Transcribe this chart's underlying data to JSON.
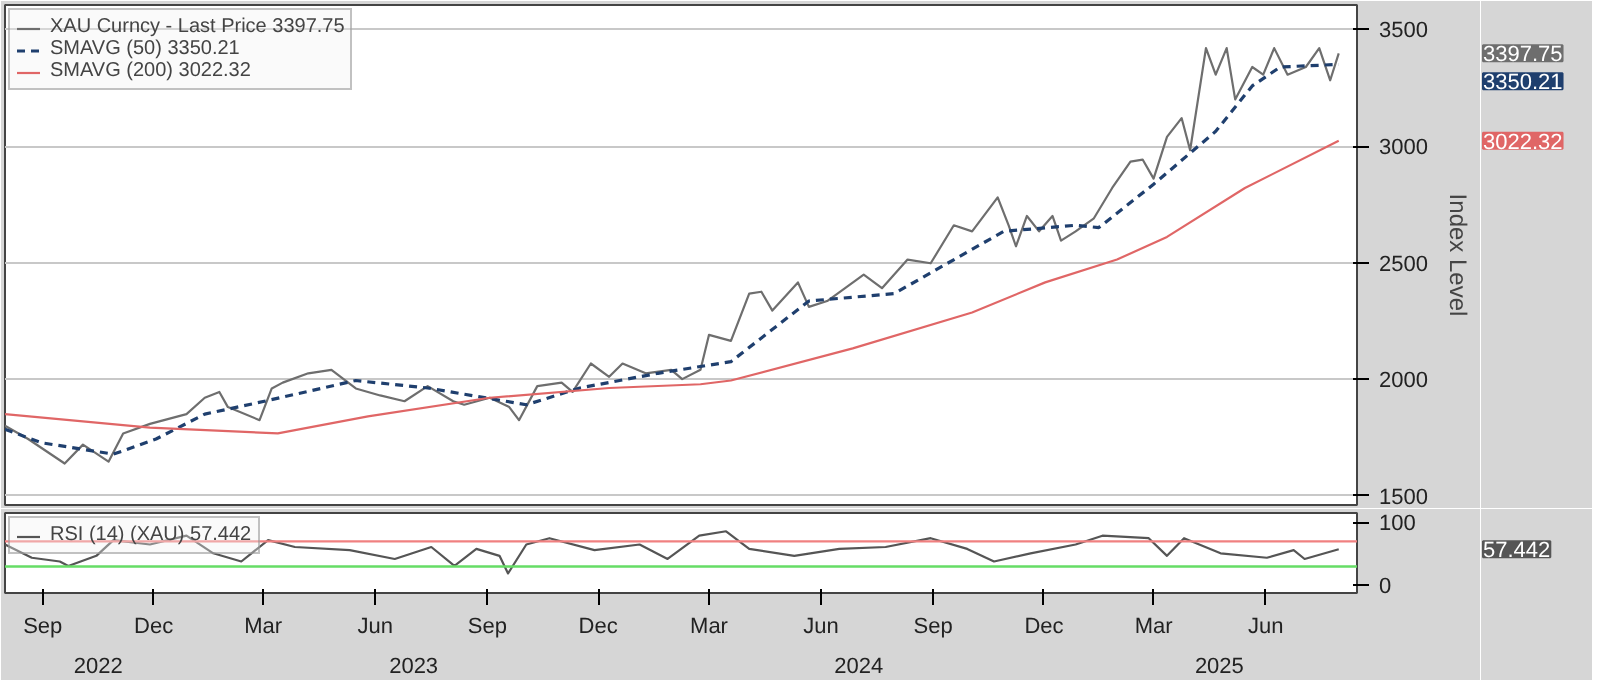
{
  "chart_data": [
    {
      "type": "line",
      "ylabel": "Index Level",
      "xlim": [
        "2022-08-01",
        "2025-08-15"
      ],
      "ylim": [
        1460,
        3605
      ],
      "yticks": [
        1500,
        2000,
        2500,
        3000,
        3500
      ],
      "tick_labels": "y",
      "grid": "y",
      "legend": "top left",
      "series": [
        {
          "name": "XAU Curncy - Last Price 3397.75",
          "color": "#6e6e6e",
          "line_style": "solid",
          "x": [
            "2022-08-01",
            "2022-08-20",
            "2022-09-19",
            "2022-10-04",
            "2022-10-25",
            "2022-11-06",
            "2022-11-28",
            "2022-12-28",
            "2023-01-12",
            "2023-01-24",
            "2023-01-31",
            "2023-02-26",
            "2023-03-08",
            "2023-03-17",
            "2023-04-07",
            "2023-04-26",
            "2023-05-16",
            "2023-06-05",
            "2023-06-25",
            "2023-07-14",
            "2023-08-04",
            "2023-08-13",
            "2023-09-03",
            "2023-09-19",
            "2023-09-27",
            "2023-10-12",
            "2023-11-01",
            "2023-11-10",
            "2023-11-25",
            "2023-12-10",
            "2023-12-21",
            "2024-01-09",
            "2024-01-30",
            "2024-02-08",
            "2024-02-23",
            "2024-03-01",
            "2024-03-19",
            "2024-04-03",
            "2024-04-13",
            "2024-04-22",
            "2024-05-13",
            "2024-05-22",
            "2024-06-06",
            "2024-07-06",
            "2024-07-21",
            "2024-08-11",
            "2024-08-30",
            "2024-09-18",
            "2024-10-03",
            "2024-10-24",
            "2024-11-02",
            "2024-11-08",
            "2024-11-17",
            "2024-11-27",
            "2024-12-08",
            "2024-12-15",
            "2024-12-27",
            "2025-01-11",
            "2025-01-26",
            "2025-02-10",
            "2025-02-20",
            "2025-03-01",
            "2025-03-12",
            "2025-03-24",
            "2025-03-31",
            "2025-04-13",
            "2025-04-21",
            "2025-04-30",
            "2025-05-07",
            "2025-05-21",
            "2025-05-30",
            "2025-06-08",
            "2025-06-19",
            "2025-07-04",
            "2025-07-15",
            "2025-07-24",
            "2025-07-31"
          ],
          "values": [
            1800,
            1743,
            1638,
            1719,
            1646,
            1767,
            1808,
            1850,
            1920,
            1945,
            1880,
            1824,
            1960,
            1985,
            2025,
            2040,
            1960,
            1930,
            1905,
            1970,
            1905,
            1890,
            1920,
            1880,
            1824,
            1970,
            1985,
            1945,
            2067,
            2010,
            2067,
            2025,
            2040,
            2000,
            2040,
            2190,
            2164,
            2367,
            2375,
            2294,
            2415,
            2310,
            2335,
            2448,
            2390,
            2513,
            2497,
            2660,
            2634,
            2780,
            2660,
            2570,
            2700,
            2634,
            2700,
            2594,
            2634,
            2690,
            2820,
            2933,
            2942,
            2860,
            3039,
            3120,
            2982,
            3420,
            3306,
            3420,
            3200,
            3339,
            3306,
            3420,
            3306,
            3339,
            3420,
            3282,
            3397.75
          ]
        },
        {
          "name": "SMAVG (50) 3350.21",
          "color": "#1f3f6e",
          "line_style": "dashed",
          "x": [
            "2022-08-01",
            "2022-08-31",
            "2022-10-29",
            "2022-12-03",
            "2023-01-12",
            "2023-03-02",
            "2023-05-16",
            "2023-07-14",
            "2023-10-03",
            "2023-11-16",
            "2024-01-19",
            "2024-03-19",
            "2024-05-22",
            "2024-07-31",
            "2024-10-29",
            "2024-12-27",
            "2025-01-15",
            "2025-03-01",
            "2025-04-21",
            "2025-05-21",
            "2025-06-13",
            "2025-07-31"
          ],
          "values": [
            1785,
            1727,
            1678,
            1743,
            1850,
            1905,
            1994,
            1962,
            1890,
            1962,
            2025,
            2075,
            2335,
            2367,
            2634,
            2660,
            2650,
            2836,
            3063,
            3258,
            3339,
            3350.21
          ]
        },
        {
          "name": "SMAVG (200) 3022.32",
          "color": "#e06666",
          "line_style": "solid",
          "x": [
            "2022-08-01",
            "2022-11-28",
            "2023-03-13",
            "2023-05-26",
            "2023-09-03",
            "2023-12-10",
            "2024-02-23",
            "2024-03-19",
            "2024-06-27",
            "2024-10-03",
            "2024-12-02",
            "2025-01-30",
            "2025-03-12",
            "2025-05-15",
            "2025-07-31"
          ],
          "values": [
            1850,
            1792,
            1767,
            1840,
            1920,
            1962,
            1978,
            1994,
            2132,
            2286,
            2415,
            2513,
            2610,
            2820,
            3022.32
          ]
        }
      ],
      "annotations": [
        "3397.75",
        "3350.21",
        "3022.32"
      ]
    },
    {
      "type": "line",
      "xlim": [
        "2022-08-01",
        "2025-08-15"
      ],
      "ylim": [
        -12,
        115
      ],
      "yticks": [
        0,
        100
      ],
      "xticks": [
        {
          "value": "2022-09-01",
          "label": "Sep"
        },
        {
          "value": "2022-12-01",
          "label": "Dec"
        },
        {
          "value": "2023-03-01",
          "label": "Mar"
        },
        {
          "value": "2023-06-01",
          "label": "Jun"
        },
        {
          "value": "2023-09-01",
          "label": "Sep"
        },
        {
          "value": "2023-12-01",
          "label": "Dec"
        },
        {
          "value": "2024-03-01",
          "label": "Mar"
        },
        {
          "value": "2024-06-01",
          "label": "Jun"
        },
        {
          "value": "2024-09-01",
          "label": "Sep"
        },
        {
          "value": "2024-12-01",
          "label": "Dec"
        },
        {
          "value": "2025-03-01",
          "label": "Mar"
        },
        {
          "value": "2025-06-01",
          "label": "Jun"
        }
      ],
      "legend": "top left",
      "series": [
        {
          "name": "RSI (14) (XAU) 57.442",
          "color": "#555555",
          "line_style": "solid",
          "x": [
            "2022-08-01",
            "2022-08-23",
            "2022-09-15",
            "2022-09-22",
            "2022-10-15",
            "2022-10-29",
            "2022-11-28",
            "2022-12-28",
            "2023-01-19",
            "2023-02-11",
            "2023-03-05",
            "2023-03-27",
            "2023-05-11",
            "2023-06-17",
            "2023-07-17",
            "2023-08-05",
            "2023-08-23",
            "2023-09-11",
            "2023-09-18",
            "2023-10-03",
            "2023-10-22",
            "2023-11-28",
            "2024-01-04",
            "2024-01-27",
            "2024-02-22",
            "2024-03-15",
            "2024-04-03",
            "2024-05-10",
            "2024-06-16",
            "2024-07-24",
            "2024-08-30",
            "2024-09-29",
            "2024-10-21",
            "2024-11-20",
            "2024-12-27",
            "2025-01-18",
            "2025-02-25",
            "2025-03-12",
            "2025-03-26",
            "2025-04-25",
            "2025-06-02",
            "2025-06-24",
            "2025-07-03",
            "2025-07-31"
          ],
          "values": [
            65,
            44,
            38,
            31,
            47,
            72,
            65,
            79,
            51,
            38,
            72,
            61,
            56,
            42,
            61,
            31,
            58,
            47,
            19,
            65,
            75,
            56,
            65,
            42,
            79,
            86,
            58,
            47,
            58,
            61,
            75,
            58,
            38,
            51,
            65,
            79,
            75,
            47,
            75,
            51,
            44,
            56,
            42,
            57.442
          ]
        }
      ],
      "ref_lines": [
        {
          "axis": "y",
          "value": 70,
          "color": "#f08080"
        },
        {
          "axis": "y",
          "value": 30,
          "color": "#66dd66"
        }
      ],
      "annotations": [
        "57.442",
        "2022",
        "2023",
        "2024",
        "2025"
      ]
    }
  ]
}
